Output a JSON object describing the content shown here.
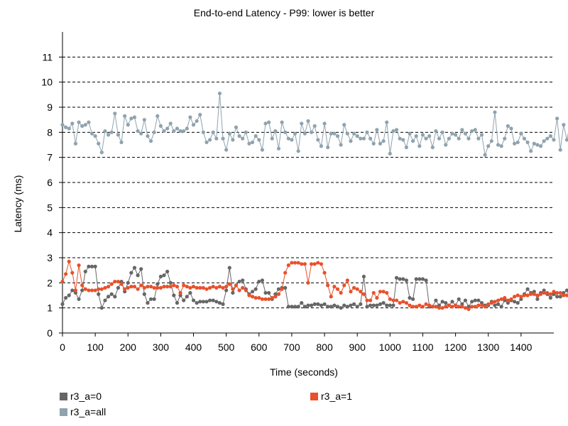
{
  "chart_data": {
    "type": "line",
    "title": "End-to-end Latency - P99: lower is better",
    "xlabel": "Time (seconds)",
    "ylabel": "Latency (ms)",
    "xlim": [
      0,
      1500
    ],
    "ylim": [
      0,
      12
    ],
    "x_ticks": [
      0,
      100,
      200,
      300,
      400,
      500,
      600,
      700,
      800,
      900,
      1000,
      1100,
      1200,
      1300,
      1400
    ],
    "y_ticks": [
      0,
      1,
      2,
      3,
      4,
      5,
      6,
      7,
      8,
      9,
      10,
      11
    ],
    "grid": "horizontal dashed",
    "legend_position": "bottom",
    "x_step_seconds": 10,
    "series": [
      {
        "name": "r3_a=0",
        "color": "#666666",
        "values": [
          1.15,
          1.4,
          1.5,
          1.7,
          1.6,
          1.35,
          1.7,
          2.45,
          2.65,
          2.65,
          2.65,
          1.55,
          1.0,
          1.3,
          1.45,
          1.55,
          1.45,
          1.8,
          2.05,
          1.65,
          2.0,
          2.4,
          2.6,
          2.3,
          2.55,
          1.55,
          1.2,
          1.35,
          1.35,
          1.95,
          2.25,
          2.3,
          2.45,
          2.0,
          1.5,
          1.2,
          1.5,
          1.3,
          1.45,
          1.6,
          1.3,
          1.2,
          1.25,
          1.25,
          1.25,
          1.3,
          1.3,
          1.25,
          1.2,
          1.15,
          1.7,
          2.6,
          1.6,
          1.9,
          2.05,
          2.1,
          1.75,
          1.55,
          1.65,
          1.75,
          2.05,
          2.1,
          1.6,
          1.6,
          1.35,
          1.55,
          1.75,
          1.8,
          1.8,
          1.05,
          1.05,
          1.05,
          1.05,
          1.2,
          1.05,
          1.1,
          1.1,
          1.15,
          1.15,
          1.1,
          1.15,
          1.05,
          1.05,
          1.1,
          1.05,
          1.0,
          1.1,
          1.05,
          1.1,
          1.15,
          1.05,
          1.15,
          2.25,
          1.05,
          1.1,
          1.1,
          1.1,
          1.15,
          1.2,
          1.1,
          1.1,
          1.1,
          2.2,
          2.15,
          2.15,
          2.1,
          1.4,
          1.35,
          2.15,
          2.15,
          2.15,
          2.1,
          1.05,
          1.05,
          1.3,
          1.1,
          1.25,
          1.2,
          1.1,
          1.25,
          1.1,
          1.35,
          1.15,
          1.3,
          1.05,
          1.25,
          1.3,
          1.3,
          1.2,
          1.1,
          1.1,
          1.25,
          1.1,
          1.15,
          1.05,
          1.3,
          1.2,
          1.3,
          1.25,
          1.2,
          1.35,
          1.55,
          1.75,
          1.6,
          1.65,
          1.35,
          1.6,
          1.7,
          1.55,
          1.4,
          1.55,
          1.45,
          1.45,
          1.6,
          1.7,
          1.4,
          1.6,
          1.75,
          1.4,
          1.5,
          1.55
        ]
      },
      {
        "name": "r3_a=1",
        "color": "#e8512b",
        "values": [
          2.05,
          2.35,
          2.85,
          2.4,
          1.7,
          2.7,
          1.9,
          1.75,
          1.7,
          1.7,
          1.7,
          1.75,
          1.75,
          1.8,
          1.85,
          1.95,
          2.05,
          2.05,
          1.95,
          1.75,
          1.8,
          1.85,
          1.85,
          1.75,
          1.9,
          1.8,
          1.85,
          1.85,
          1.8,
          1.8,
          1.8,
          1.85,
          1.85,
          1.85,
          1.9,
          1.85,
          1.6,
          1.9,
          1.85,
          1.8,
          1.85,
          1.8,
          1.8,
          1.8,
          1.75,
          1.8,
          1.85,
          1.8,
          1.85,
          1.8,
          1.85,
          1.95,
          1.75,
          1.9,
          1.7,
          1.8,
          1.7,
          1.5,
          1.45,
          1.4,
          1.4,
          1.35,
          1.35,
          1.35,
          1.4,
          1.45,
          1.55,
          1.75,
          2.4,
          2.7,
          2.8,
          2.8,
          2.8,
          2.75,
          2.75,
          2.0,
          2.75,
          2.75,
          2.8,
          2.75,
          2.4,
          1.9,
          1.45,
          1.85,
          1.75,
          1.6,
          1.9,
          2.1,
          1.65,
          1.8,
          1.75,
          1.65,
          1.55,
          1.3,
          1.3,
          1.6,
          1.4,
          1.65,
          1.65,
          1.6,
          1.35,
          1.3,
          1.3,
          1.2,
          1.25,
          1.2,
          1.1,
          1.05,
          1.05,
          1.1,
          1.05,
          1.15,
          1.1,
          1.05,
          1.05,
          1.0,
          1.0,
          1.05,
          1.1,
          1.05,
          1.1,
          1.05,
          1.05,
          1.0,
          0.95,
          1.05,
          1.05,
          1.1,
          1.1,
          1.05,
          1.15,
          1.2,
          1.25,
          1.3,
          1.35,
          1.4,
          1.3,
          1.35,
          1.45,
          1.5,
          1.45,
          1.5,
          1.5,
          1.55,
          1.55,
          1.5,
          1.55,
          1.6,
          1.6,
          1.55,
          1.65,
          1.6,
          1.6,
          1.5,
          1.5
        ]
      },
      {
        "name": "r3_a=all",
        "color": "#8fa3ae",
        "values": [
          8.3,
          8.2,
          8.15,
          8.35,
          7.55,
          8.4,
          8.25,
          8.3,
          8.4,
          7.95,
          7.85,
          7.55,
          7.2,
          8.05,
          7.9,
          8.0,
          8.75,
          7.9,
          7.6,
          8.65,
          8.3,
          8.55,
          8.6,
          8.05,
          7.95,
          8.5,
          7.85,
          7.65,
          8.0,
          8.65,
          8.25,
          8.05,
          8.15,
          8.35,
          8.05,
          8.15,
          8.05,
          8.05,
          8.15,
          8.6,
          8.3,
          8.45,
          8.7,
          8.0,
          7.6,
          7.7,
          8.0,
          7.75,
          9.55,
          7.75,
          7.3,
          7.95,
          7.7,
          8.2,
          7.85,
          7.75,
          8.0,
          7.55,
          7.6,
          7.85,
          7.7,
          7.3,
          8.35,
          8.4,
          7.75,
          8.05,
          7.35,
          8.4,
          8.0,
          7.75,
          7.7,
          7.95,
          7.25,
          8.35,
          7.95,
          8.45,
          8.0,
          8.25,
          7.7,
          7.45,
          8.35,
          7.4,
          7.95,
          7.95,
          7.85,
          7.5,
          8.3,
          7.95,
          7.65,
          7.95,
          7.85,
          7.75,
          7.75,
          8.0,
          7.75,
          7.55,
          8.1,
          7.55,
          7.65,
          8.4,
          7.15,
          8.05,
          8.1,
          7.75,
          7.7,
          7.4,
          7.95,
          7.65,
          7.85,
          7.45,
          7.9,
          7.75,
          7.85,
          7.4,
          8.05,
          7.75,
          8.0,
          7.5,
          7.75,
          7.95,
          7.9,
          7.75,
          8.1,
          7.95,
          7.75,
          8.05,
          8.1,
          7.75,
          7.9,
          7.1,
          7.45,
          7.65,
          8.8,
          7.5,
          7.45,
          7.75,
          8.25,
          8.15,
          7.55,
          7.6,
          7.95,
          7.75,
          7.6,
          7.25,
          7.55,
          7.5,
          7.45,
          7.65,
          7.75,
          7.85,
          7.7,
          8.55,
          7.3,
          8.3,
          7.7,
          8.35,
          7.6,
          7.75,
          7.65
        ]
      }
    ]
  }
}
